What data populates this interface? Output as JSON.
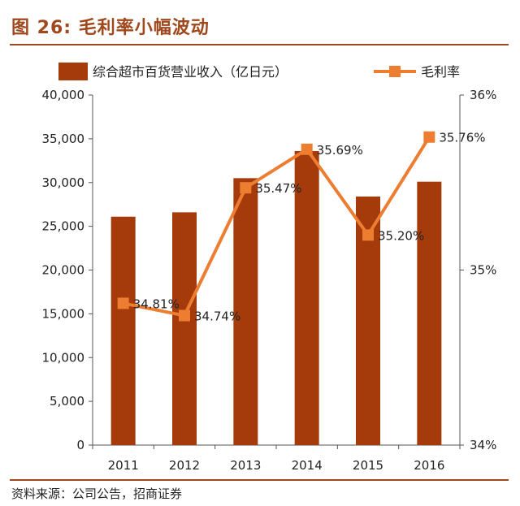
{
  "figure": {
    "title": "图 26:  毛利率小幅波动",
    "source": "资料来源：公司公告，招商证券"
  },
  "colors": {
    "title": "#a0471c",
    "bar": "#a53a0b",
    "line": "#ed7d31"
  },
  "chart_data": {
    "type": "bar",
    "title": "",
    "categories": [
      "2011",
      "2012",
      "2013",
      "2014",
      "2015",
      "2016"
    ],
    "series": [
      {
        "name": "综合超市百货营业收入（亿日元）",
        "type": "bar",
        "axis": "left",
        "values": [
          26100,
          26600,
          30500,
          33600,
          28400,
          30100
        ]
      },
      {
        "name": "毛利率",
        "type": "line",
        "axis": "right",
        "values": [
          34.81,
          34.74,
          35.47,
          35.69,
          35.2,
          35.76
        ],
        "labels": [
          "34.81%",
          "34.74%",
          "35.47%",
          "35.69%",
          "35.20%",
          "35.76%"
        ]
      }
    ],
    "ylim_left": [
      0,
      40000
    ],
    "yticks_left": [
      "0",
      "5,000",
      "10,000",
      "15,000",
      "20,000",
      "25,000",
      "30,000",
      "35,000",
      "40,000"
    ],
    "ylim_right": [
      34,
      36
    ],
    "yticks_right": [
      "34%",
      "35%",
      "36%"
    ],
    "grid": false,
    "legend": "top"
  }
}
